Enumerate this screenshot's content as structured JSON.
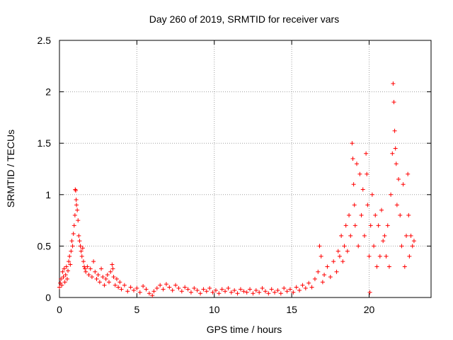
{
  "chart_data": {
    "type": "scatter",
    "title": "Day 260 of 2019, SRMTID for receiver vars",
    "xlabel": "GPS time / hours",
    "ylabel": "SRMTID / TECUs",
    "xlim": [
      0,
      24
    ],
    "ylim": [
      0,
      2.5
    ],
    "xticks": [
      0,
      5,
      10,
      15,
      20
    ],
    "xtick_labels": [
      "0",
      "5",
      "10",
      "15",
      "20"
    ],
    "yticks": [
      0,
      0.5,
      1,
      1.5,
      2,
      2.5
    ],
    "ytick_labels": [
      "0",
      "0.5",
      "1",
      "1.5",
      "2",
      "2.5"
    ],
    "grid": true,
    "marker": "+",
    "color": "#ff0000",
    "series": [
      {
        "name": "SRMTID",
        "points": [
          [
            0.0,
            0.1
          ],
          [
            0.05,
            0.14
          ],
          [
            0.1,
            0.18
          ],
          [
            0.15,
            0.12
          ],
          [
            0.2,
            0.25
          ],
          [
            0.25,
            0.2
          ],
          [
            0.3,
            0.28
          ],
          [
            0.35,
            0.15
          ],
          [
            0.4,
            0.22
          ],
          [
            0.45,
            0.3
          ],
          [
            0.5,
            0.18
          ],
          [
            0.55,
            0.26
          ],
          [
            0.6,
            0.35
          ],
          [
            0.65,
            0.4
          ],
          [
            0.7,
            0.32
          ],
          [
            0.75,
            0.45
          ],
          [
            0.8,
            0.55
          ],
          [
            0.85,
            0.5
          ],
          [
            0.9,
            0.62
          ],
          [
            0.95,
            0.7
          ],
          [
            1.0,
            0.8
          ],
          [
            1.02,
            1.05
          ],
          [
            1.05,
            1.04
          ],
          [
            1.08,
            0.95
          ],
          [
            1.1,
            0.9
          ],
          [
            1.15,
            0.85
          ],
          [
            1.2,
            0.75
          ],
          [
            1.25,
            0.6
          ],
          [
            1.3,
            0.55
          ],
          [
            1.35,
            0.5
          ],
          [
            1.4,
            0.45
          ],
          [
            1.45,
            0.4
          ],
          [
            1.5,
            0.48
          ],
          [
            1.55,
            0.35
          ],
          [
            1.6,
            0.3
          ],
          [
            1.65,
            0.28
          ],
          [
            1.7,
            0.25
          ],
          [
            1.8,
            0.3
          ],
          [
            1.9,
            0.22
          ],
          [
            2.0,
            0.28
          ],
          [
            2.1,
            0.2
          ],
          [
            2.2,
            0.35
          ],
          [
            2.3,
            0.25
          ],
          [
            2.4,
            0.18
          ],
          [
            2.5,
            0.22
          ],
          [
            2.6,
            0.15
          ],
          [
            2.7,
            0.28
          ],
          [
            2.8,
            0.2
          ],
          [
            2.9,
            0.12
          ],
          [
            3.0,
            0.18
          ],
          [
            3.1,
            0.22
          ],
          [
            3.2,
            0.15
          ],
          [
            3.3,
            0.25
          ],
          [
            3.4,
            0.32
          ],
          [
            3.45,
            0.28
          ],
          [
            3.5,
            0.2
          ],
          [
            3.6,
            0.12
          ],
          [
            3.7,
            0.18
          ],
          [
            3.8,
            0.1
          ],
          [
            3.9,
            0.15
          ],
          [
            4.0,
            0.08
          ],
          [
            4.2,
            0.12
          ],
          [
            4.4,
            0.06
          ],
          [
            4.6,
            0.1
          ],
          [
            4.8,
            0.07
          ],
          [
            5.0,
            0.09
          ],
          [
            5.2,
            0.05
          ],
          [
            5.4,
            0.11
          ],
          [
            5.6,
            0.08
          ],
          [
            5.8,
            0.04
          ],
          [
            6.0,
            0.02
          ],
          [
            6.1,
            0.06
          ],
          [
            6.3,
            0.09
          ],
          [
            6.5,
            0.12
          ],
          [
            6.7,
            0.08
          ],
          [
            6.9,
            0.13
          ],
          [
            7.1,
            0.1
          ],
          [
            7.3,
            0.07
          ],
          [
            7.5,
            0.12
          ],
          [
            7.7,
            0.09
          ],
          [
            7.9,
            0.06
          ],
          [
            8.1,
            0.1
          ],
          [
            8.3,
            0.08
          ],
          [
            8.5,
            0.05
          ],
          [
            8.7,
            0.09
          ],
          [
            8.9,
            0.07
          ],
          [
            9.1,
            0.04
          ],
          [
            9.3,
            0.08
          ],
          [
            9.5,
            0.06
          ],
          [
            9.7,
            0.09
          ],
          [
            9.9,
            0.05
          ],
          [
            10.1,
            0.07
          ],
          [
            10.3,
            0.04
          ],
          [
            10.5,
            0.08
          ],
          [
            10.7,
            0.06
          ],
          [
            10.9,
            0.09
          ],
          [
            11.1,
            0.05
          ],
          [
            11.3,
            0.07
          ],
          [
            11.5,
            0.04
          ],
          [
            11.7,
            0.08
          ],
          [
            11.9,
            0.06
          ],
          [
            12.1,
            0.05
          ],
          [
            12.3,
            0.08
          ],
          [
            12.5,
            0.04
          ],
          [
            12.7,
            0.07
          ],
          [
            12.9,
            0.05
          ],
          [
            13.1,
            0.09
          ],
          [
            13.3,
            0.06
          ],
          [
            13.5,
            0.04
          ],
          [
            13.7,
            0.08
          ],
          [
            13.9,
            0.05
          ],
          [
            14.1,
            0.07
          ],
          [
            14.3,
            0.04
          ],
          [
            14.5,
            0.09
          ],
          [
            14.7,
            0.06
          ],
          [
            14.9,
            0.08
          ],
          [
            15.1,
            0.05
          ],
          [
            15.3,
            0.1
          ],
          [
            15.5,
            0.07
          ],
          [
            15.7,
            0.12
          ],
          [
            15.9,
            0.09
          ],
          [
            16.1,
            0.14
          ],
          [
            16.3,
            0.1
          ],
          [
            16.5,
            0.18
          ],
          [
            16.7,
            0.25
          ],
          [
            16.8,
            0.5
          ],
          [
            16.9,
            0.4
          ],
          [
            17.0,
            0.15
          ],
          [
            17.1,
            0.22
          ],
          [
            17.3,
            0.3
          ],
          [
            17.5,
            0.2
          ],
          [
            17.7,
            0.35
          ],
          [
            17.9,
            0.25
          ],
          [
            18.0,
            0.45
          ],
          [
            18.1,
            0.4
          ],
          [
            18.2,
            0.6
          ],
          [
            18.3,
            0.35
          ],
          [
            18.4,
            0.5
          ],
          [
            18.5,
            0.7
          ],
          [
            18.6,
            0.45
          ],
          [
            18.7,
            0.8
          ],
          [
            18.8,
            0.6
          ],
          [
            18.9,
            1.5
          ],
          [
            18.95,
            1.35
          ],
          [
            19.0,
            1.1
          ],
          [
            19.05,
            0.9
          ],
          [
            19.1,
            0.7
          ],
          [
            19.2,
            1.3
          ],
          [
            19.3,
            0.5
          ],
          [
            19.4,
            1.2
          ],
          [
            19.5,
            0.8
          ],
          [
            19.6,
            1.05
          ],
          [
            19.7,
            0.6
          ],
          [
            19.8,
            1.4
          ],
          [
            19.85,
            1.2
          ],
          [
            19.9,
            0.9
          ],
          [
            20.0,
            0.4
          ],
          [
            20.05,
            0.05
          ],
          [
            20.1,
            0.7
          ],
          [
            20.2,
            1.0
          ],
          [
            20.3,
            0.5
          ],
          [
            20.4,
            0.8
          ],
          [
            20.5,
            0.3
          ],
          [
            20.6,
            0.7
          ],
          [
            20.7,
            0.4
          ],
          [
            20.8,
            0.85
          ],
          [
            20.9,
            0.55
          ],
          [
            21.0,
            0.6
          ],
          [
            21.1,
            0.4
          ],
          [
            21.2,
            0.7
          ],
          [
            21.3,
            0.3
          ],
          [
            21.4,
            1.0
          ],
          [
            21.5,
            1.4
          ],
          [
            21.55,
            2.08
          ],
          [
            21.6,
            1.9
          ],
          [
            21.65,
            1.62
          ],
          [
            21.7,
            1.45
          ],
          [
            21.75,
            1.3
          ],
          [
            21.8,
            0.9
          ],
          [
            21.9,
            1.15
          ],
          [
            22.0,
            0.8
          ],
          [
            22.1,
            0.5
          ],
          [
            22.2,
            1.1
          ],
          [
            22.3,
            0.3
          ],
          [
            22.4,
            0.6
          ],
          [
            22.5,
            1.2
          ],
          [
            22.55,
            0.8
          ],
          [
            22.6,
            0.4
          ],
          [
            22.7,
            0.6
          ],
          [
            22.8,
            0.5
          ],
          [
            22.9,
            0.55
          ]
        ]
      }
    ]
  }
}
